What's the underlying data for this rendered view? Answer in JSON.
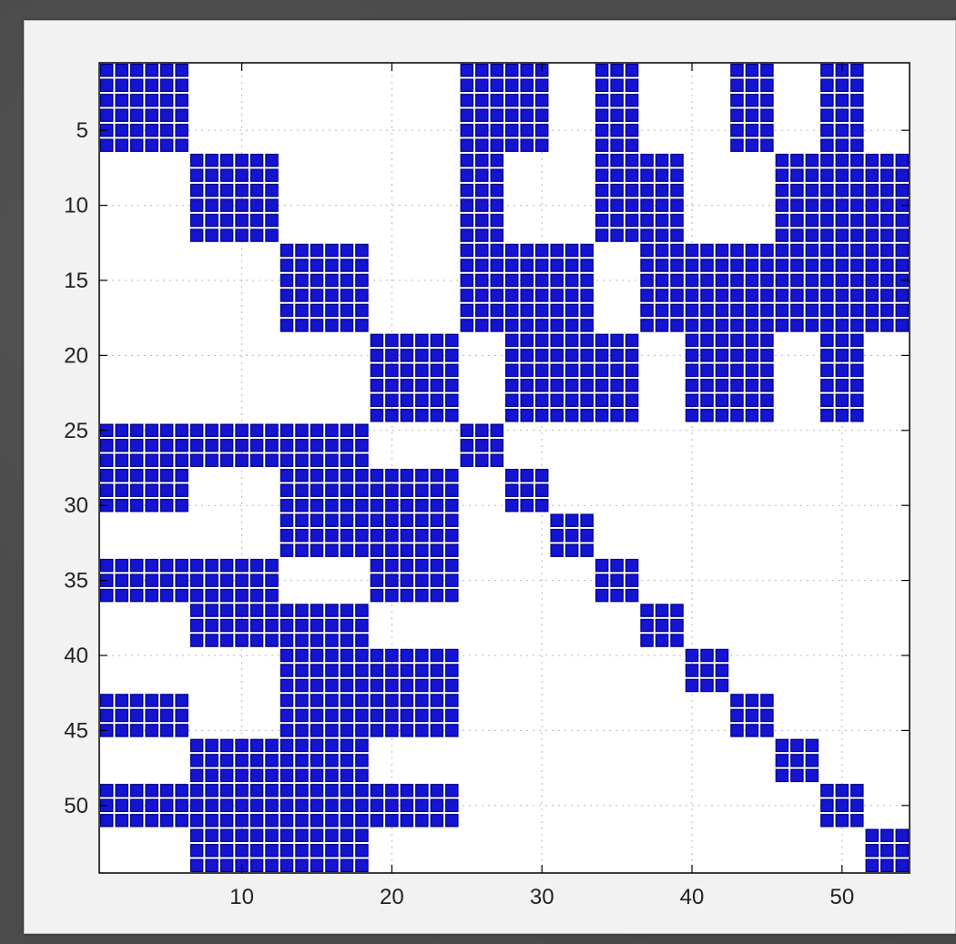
{
  "chart_data": {
    "type": "heatmap",
    "subtype": "sparsity-pattern",
    "title": "",
    "xlabel": "",
    "ylabel": "",
    "xlim": [
      0.5,
      54.5
    ],
    "ylim": [
      0.5,
      54.5
    ],
    "y_axis": "reversed",
    "grid": "dotted",
    "colors": {
      "marker": "#1414d2",
      "marker_edge": "#000080",
      "background": "#ffffff"
    },
    "x_ticks": [
      10,
      20,
      30,
      40,
      50
    ],
    "y_ticks": [
      5,
      10,
      15,
      20,
      25,
      30,
      35,
      40,
      45,
      50
    ],
    "x_tick_labels": [
      "10",
      "20",
      "30",
      "40",
      "50"
    ],
    "y_tick_labels": [
      "5",
      "10",
      "15",
      "20",
      "25",
      "30",
      "35",
      "40",
      "45",
      "50"
    ],
    "blocks": [
      {
        "rows": [
          1,
          6
        ],
        "cols": [
          1,
          6
        ]
      },
      {
        "rows": [
          1,
          6
        ],
        "cols": [
          25,
          30
        ]
      },
      {
        "rows": [
          1,
          6
        ],
        "cols": [
          34,
          36
        ]
      },
      {
        "rows": [
          1,
          6
        ],
        "cols": [
          43,
          45
        ]
      },
      {
        "rows": [
          1,
          6
        ],
        "cols": [
          49,
          51
        ]
      },
      {
        "rows": [
          7,
          12
        ],
        "cols": [
          7,
          12
        ]
      },
      {
        "rows": [
          7,
          12
        ],
        "cols": [
          25,
          27
        ]
      },
      {
        "rows": [
          7,
          12
        ],
        "cols": [
          34,
          39
        ]
      },
      {
        "rows": [
          7,
          12
        ],
        "cols": [
          46,
          54
        ]
      },
      {
        "rows": [
          13,
          18
        ],
        "cols": [
          13,
          18
        ]
      },
      {
        "rows": [
          13,
          18
        ],
        "cols": [
          25,
          33
        ]
      },
      {
        "rows": [
          13,
          18
        ],
        "cols": [
          37,
          54
        ]
      },
      {
        "rows": [
          19,
          24
        ],
        "cols": [
          19,
          24
        ]
      },
      {
        "rows": [
          19,
          24
        ],
        "cols": [
          28,
          36
        ]
      },
      {
        "rows": [
          19,
          24
        ],
        "cols": [
          40,
          45
        ]
      },
      {
        "rows": [
          19,
          24
        ],
        "cols": [
          49,
          51
        ]
      },
      {
        "rows": [
          25,
          27
        ],
        "cols": [
          1,
          18
        ]
      },
      {
        "rows": [
          25,
          27
        ],
        "cols": [
          25,
          27
        ]
      },
      {
        "rows": [
          28,
          30
        ],
        "cols": [
          1,
          6
        ]
      },
      {
        "rows": [
          28,
          30
        ],
        "cols": [
          13,
          24
        ]
      },
      {
        "rows": [
          28,
          30
        ],
        "cols": [
          28,
          30
        ]
      },
      {
        "rows": [
          31,
          33
        ],
        "cols": [
          13,
          24
        ]
      },
      {
        "rows": [
          31,
          33
        ],
        "cols": [
          31,
          33
        ]
      },
      {
        "rows": [
          34,
          36
        ],
        "cols": [
          1,
          12
        ]
      },
      {
        "rows": [
          34,
          36
        ],
        "cols": [
          19,
          24
        ]
      },
      {
        "rows": [
          34,
          36
        ],
        "cols": [
          34,
          36
        ]
      },
      {
        "rows": [
          37,
          39
        ],
        "cols": [
          7,
          18
        ]
      },
      {
        "rows": [
          37,
          39
        ],
        "cols": [
          37,
          39
        ]
      },
      {
        "rows": [
          40,
          42
        ],
        "cols": [
          13,
          24
        ]
      },
      {
        "rows": [
          40,
          42
        ],
        "cols": [
          40,
          42
        ]
      },
      {
        "rows": [
          43,
          45
        ],
        "cols": [
          1,
          6
        ]
      },
      {
        "rows": [
          43,
          45
        ],
        "cols": [
          13,
          24
        ]
      },
      {
        "rows": [
          43,
          45
        ],
        "cols": [
          43,
          45
        ]
      },
      {
        "rows": [
          46,
          48
        ],
        "cols": [
          7,
          18
        ]
      },
      {
        "rows": [
          46,
          48
        ],
        "cols": [
          46,
          48
        ]
      },
      {
        "rows": [
          49,
          51
        ],
        "cols": [
          1,
          24
        ]
      },
      {
        "rows": [
          49,
          51
        ],
        "cols": [
          49,
          51
        ]
      },
      {
        "rows": [
          52,
          54
        ],
        "cols": [
          7,
          18
        ]
      },
      {
        "rows": [
          52,
          54
        ],
        "cols": [
          52,
          54
        ]
      }
    ]
  }
}
